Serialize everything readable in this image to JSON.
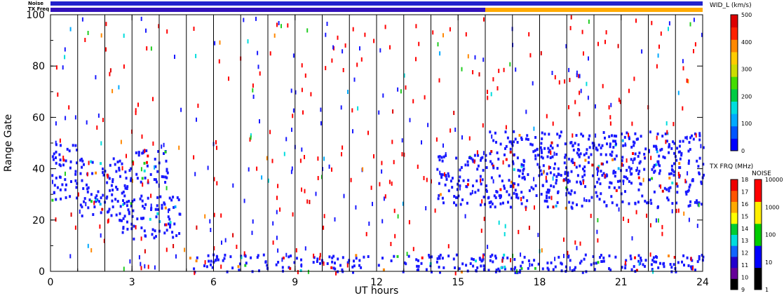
{
  "chart_data": {
    "type": "heatmap",
    "xlabel": "UT hours",
    "ylabel": "Range Gate",
    "xlim": [
      0,
      24
    ],
    "ylim": [
      0,
      100
    ],
    "x_ticks": [
      "0",
      "3",
      "6",
      "9",
      "12",
      "15",
      "18",
      "21",
      "24"
    ],
    "y_ticks": [
      "0",
      "20",
      "40",
      "60",
      "80",
      "100"
    ],
    "x_tick_values": [
      0,
      3,
      6,
      9,
      12,
      15,
      18,
      21,
      24
    ],
    "y_tick_values": [
      0,
      20,
      40,
      60,
      80,
      100
    ],
    "hour_lines": [
      1,
      2,
      3,
      4,
      5,
      6,
      7,
      8,
      9,
      10,
      11,
      12,
      13,
      14,
      15,
      16,
      17,
      18,
      19,
      20,
      21,
      22,
      23
    ],
    "top_bars": {
      "noise_label": "Noise",
      "freq_label": "TX Freq",
      "noise_segments": [
        {
          "from": 0,
          "to": 24,
          "color": "#2222cc"
        }
      ],
      "freq_segments": [
        {
          "from": 0,
          "to": 16,
          "color": "#3311bb"
        },
        {
          "from": 16,
          "to": 24,
          "color": "#ffaa00"
        }
      ]
    },
    "scatter_clusters": [
      {
        "x": [
          0,
          1
        ],
        "y": [
          28,
          50
        ],
        "color": "#1a1aff"
      },
      {
        "x": [
          1,
          3
        ],
        "y": [
          22,
          45
        ],
        "color": "#1a1aff"
      },
      {
        "x": [
          3,
          4.3
        ],
        "y": [
          34,
          48
        ],
        "color": "#1a1aff"
      },
      {
        "x": [
          2.5,
          4.8
        ],
        "y": [
          13,
          30
        ],
        "color": "#1a1aff"
      },
      {
        "x": [
          14.2,
          16
        ],
        "y": [
          26,
          46
        ],
        "color": "#1a1aff"
      },
      {
        "x": [
          16,
          24
        ],
        "y": [
          25,
          55
        ],
        "color": "#1a1aff"
      },
      {
        "x": [
          5,
          24
        ],
        "y": [
          0,
          7
        ],
        "color": "#1a1aff"
      }
    ],
    "colorbars": [
      {
        "title": "WID_L (km/s)",
        "ticks": [
          "0",
          "100",
          "200",
          "300",
          "400",
          "500"
        ],
        "colors": [
          "#0000ff",
          "#0055ff",
          "#00aaff",
          "#00dddd",
          "#00cc44",
          "#44dd00",
          "#ccdd00",
          "#ffcc00",
          "#ff8800",
          "#ff2200",
          "#dd0000"
        ]
      },
      {
        "title": "TX FRQ (MHz)",
        "ticks": [
          "9",
          "10",
          "11",
          "12",
          "13",
          "14",
          "15",
          "16",
          "17",
          "18"
        ],
        "colors": [
          "#000000",
          "#660099",
          "#2200cc",
          "#1166ff",
          "#00dddd",
          "#00cc33",
          "#ffff00",
          "#ffaa00",
          "#ff5500",
          "#ee0000"
        ]
      },
      {
        "title": "NOISE",
        "ticks": [
          "1",
          "10",
          "100",
          "1000",
          "10000"
        ],
        "colors": [
          "#000000",
          "#0000ff",
          "#00cc00",
          "#ffee00",
          "#ff0000"
        ]
      }
    ]
  }
}
